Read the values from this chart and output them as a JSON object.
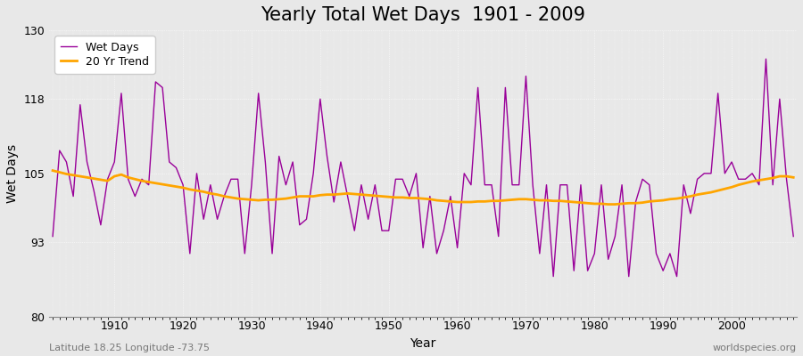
{
  "title": "Yearly Total Wet Days  1901 - 2009",
  "xlabel": "Year",
  "ylabel": "Wet Days",
  "subtitle": "Latitude 18.25 Longitude -73.75",
  "watermark": "worldspecies.org",
  "years": [
    1901,
    1902,
    1903,
    1904,
    1905,
    1906,
    1907,
    1908,
    1909,
    1910,
    1911,
    1912,
    1913,
    1914,
    1915,
    1916,
    1917,
    1918,
    1919,
    1920,
    1921,
    1922,
    1923,
    1924,
    1925,
    1926,
    1927,
    1928,
    1929,
    1930,
    1931,
    1932,
    1933,
    1934,
    1935,
    1936,
    1937,
    1938,
    1939,
    1940,
    1941,
    1942,
    1943,
    1944,
    1945,
    1946,
    1947,
    1948,
    1949,
    1950,
    1951,
    1952,
    1953,
    1954,
    1955,
    1956,
    1957,
    1958,
    1959,
    1960,
    1961,
    1962,
    1963,
    1964,
    1965,
    1966,
    1967,
    1968,
    1969,
    1970,
    1971,
    1972,
    1973,
    1974,
    1975,
    1976,
    1977,
    1978,
    1979,
    1980,
    1981,
    1982,
    1983,
    1984,
    1985,
    1986,
    1987,
    1988,
    1989,
    1990,
    1991,
    1992,
    1993,
    1994,
    1995,
    1996,
    1997,
    1998,
    1999,
    2000,
    2001,
    2002,
    2003,
    2004,
    2005,
    2006,
    2007,
    2008,
    2009
  ],
  "wet_days": [
    94,
    109,
    107,
    101,
    117,
    107,
    102,
    96,
    104,
    107,
    119,
    104,
    101,
    104,
    103,
    121,
    120,
    107,
    106,
    103,
    91,
    105,
    97,
    103,
    97,
    101,
    104,
    104,
    91,
    103,
    119,
    107,
    91,
    108,
    103,
    107,
    96,
    97,
    105,
    118,
    108,
    100,
    107,
    101,
    95,
    103,
    97,
    103,
    95,
    95,
    104,
    104,
    101,
    105,
    92,
    101,
    91,
    95,
    101,
    92,
    105,
    103,
    120,
    103,
    103,
    94,
    120,
    103,
    103,
    122,
    103,
    91,
    103,
    87,
    103,
    103,
    88,
    103,
    88,
    91,
    103,
    90,
    94,
    103,
    87,
    100,
    104,
    103,
    91,
    88,
    91,
    87,
    103,
    98,
    104,
    105,
    105,
    119,
    105,
    107,
    104,
    104,
    105,
    103,
    125,
    103,
    118,
    104,
    94
  ],
  "trend_values": [
    105.5,
    105.2,
    104.9,
    104.7,
    104.5,
    104.3,
    104.1,
    103.9,
    103.7,
    104.5,
    104.8,
    104.3,
    104.0,
    103.7,
    103.5,
    103.3,
    103.1,
    102.9,
    102.7,
    102.5,
    102.2,
    102.0,
    101.8,
    101.5,
    101.3,
    101.0,
    100.8,
    100.6,
    100.5,
    100.4,
    100.3,
    100.4,
    100.4,
    100.5,
    100.6,
    100.8,
    101.0,
    101.0,
    101.0,
    101.2,
    101.3,
    101.3,
    101.4,
    101.5,
    101.4,
    101.3,
    101.2,
    101.1,
    101.0,
    100.9,
    100.8,
    100.8,
    100.7,
    100.7,
    100.6,
    100.5,
    100.3,
    100.2,
    100.1,
    100.0,
    100.0,
    100.0,
    100.1,
    100.1,
    100.2,
    100.2,
    100.3,
    100.4,
    100.5,
    100.5,
    100.4,
    100.3,
    100.3,
    100.2,
    100.2,
    100.1,
    100.0,
    99.9,
    99.8,
    99.7,
    99.7,
    99.6,
    99.6,
    99.7,
    99.8,
    99.8,
    99.9,
    100.1,
    100.2,
    100.3,
    100.5,
    100.6,
    100.8,
    101.0,
    101.3,
    101.5,
    101.7,
    102.0,
    102.3,
    102.6,
    103.0,
    103.3,
    103.6,
    103.8,
    104.0,
    104.2,
    104.5,
    104.5,
    104.3
  ],
  "wet_days_color": "#990099",
  "trend_color": "#FFA500",
  "bg_color": "#E8E8E8",
  "plot_bg_color": "#E8E8E8",
  "ylim": [
    80,
    130
  ],
  "yticks": [
    80,
    93,
    105,
    118,
    130
  ],
  "xlim": [
    1900.5,
    2009.5
  ],
  "xticks": [
    1910,
    1920,
    1930,
    1940,
    1950,
    1960,
    1970,
    1980,
    1990,
    2000
  ],
  "title_fontsize": 15,
  "label_fontsize": 10,
  "tick_fontsize": 9
}
